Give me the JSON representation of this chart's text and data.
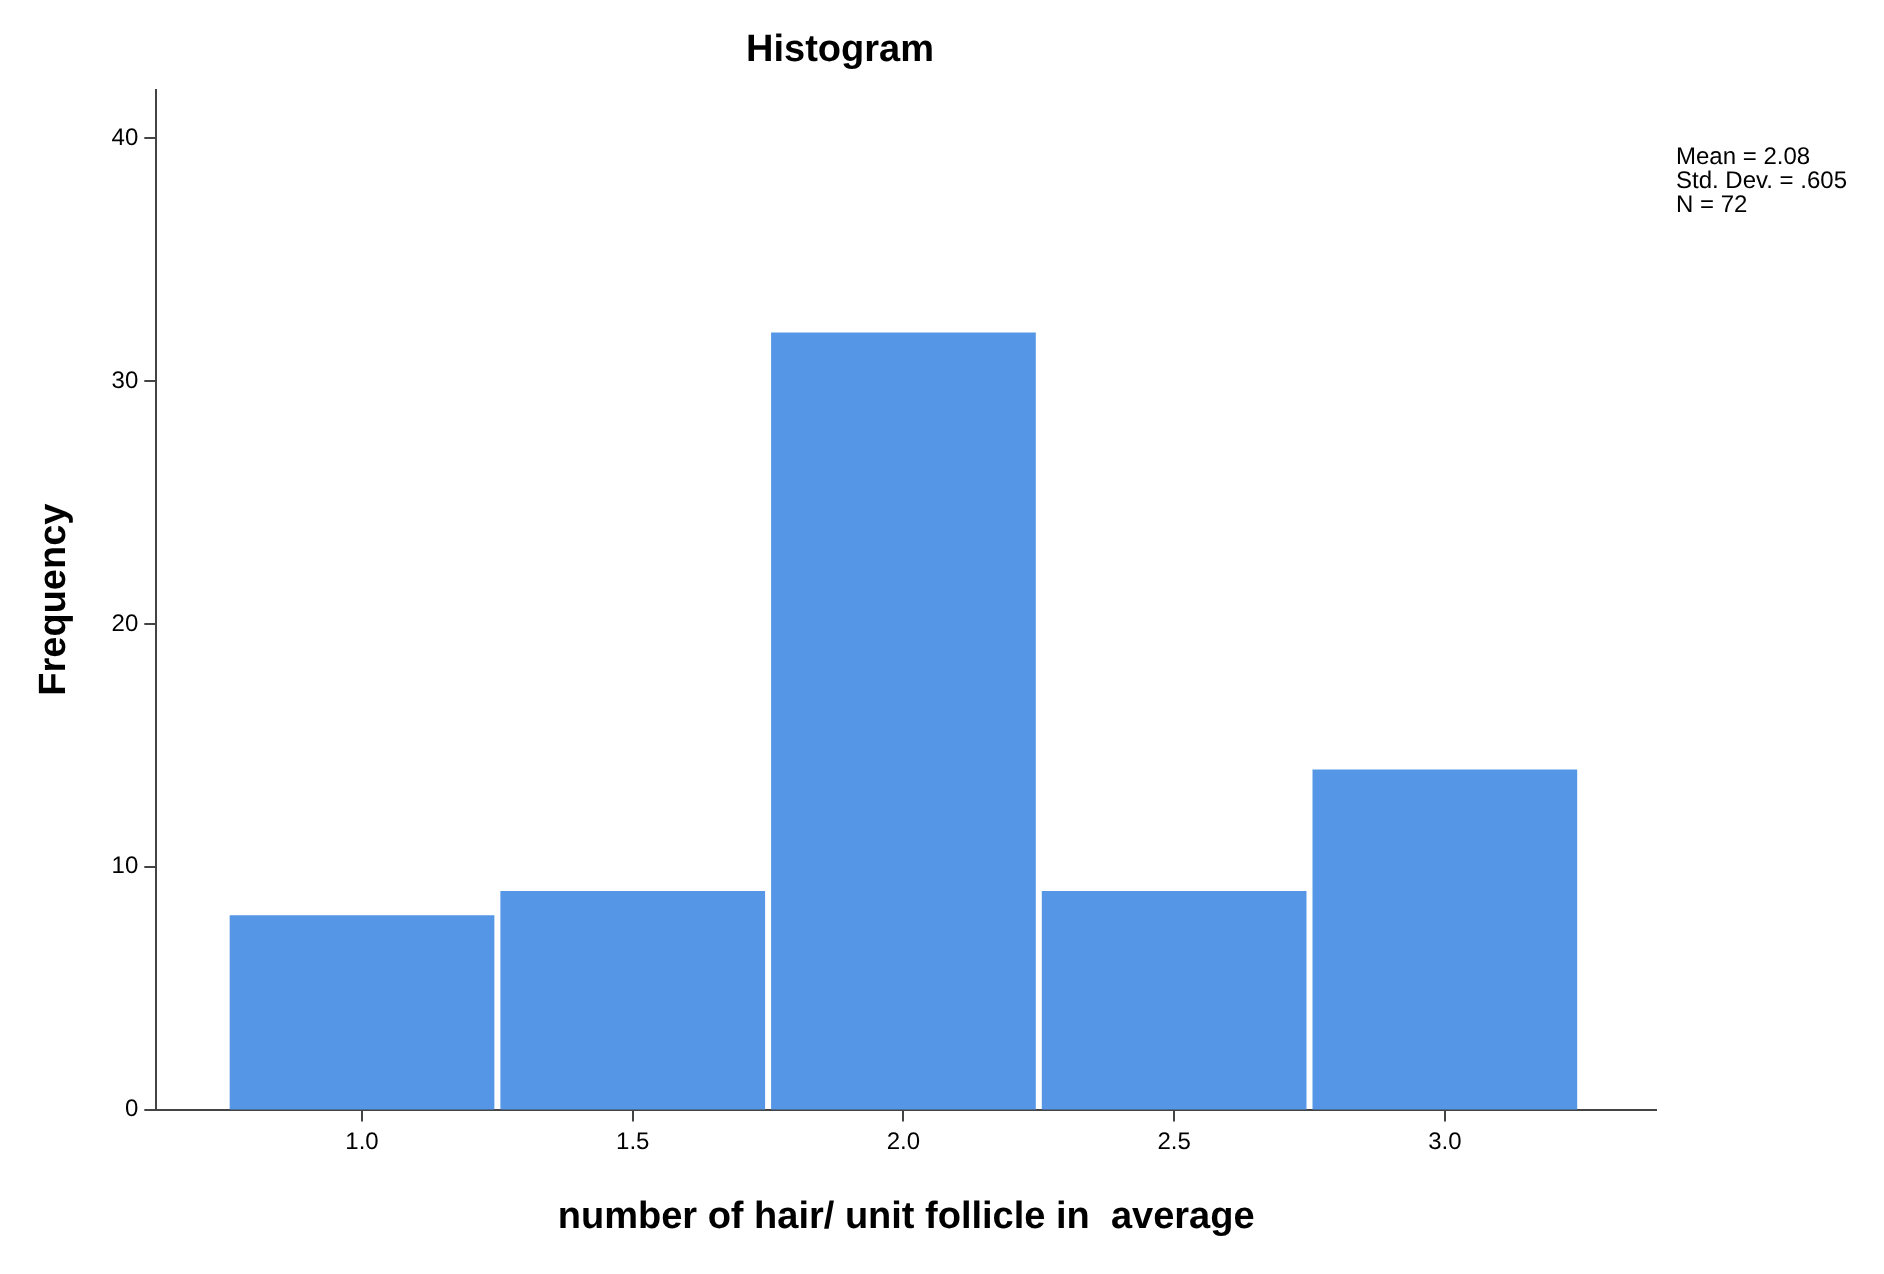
{
  "chart_data": {
    "type": "histogram",
    "title": "Histogram",
    "xlabel": "number of hair/ unit follicle in  average",
    "ylabel": "Frequency",
    "bins": [
      0.75,
      1.25,
      1.75,
      2.25,
      2.75,
      3.25
    ],
    "values": [
      8,
      9,
      32,
      9,
      14
    ],
    "color": "#5596e6",
    "xlim": [
      0.62,
      3.39
    ],
    "xticks": [
      {
        "value": 1,
        "label": "1.0"
      },
      {
        "value": 1.5,
        "label": "1.5"
      },
      {
        "value": 2,
        "label": "2.0"
      },
      {
        "value": 2.5,
        "label": "2.5"
      },
      {
        "value": 3,
        "label": "3.0"
      }
    ],
    "ylim": [
      0,
      42
    ],
    "yticks": [
      0,
      10,
      20,
      30,
      40
    ],
    "grid": false,
    "legend": false,
    "annotations": [
      "Mean = 2.08",
      "Std. Dev. = .605",
      "N = 72"
    ]
  }
}
